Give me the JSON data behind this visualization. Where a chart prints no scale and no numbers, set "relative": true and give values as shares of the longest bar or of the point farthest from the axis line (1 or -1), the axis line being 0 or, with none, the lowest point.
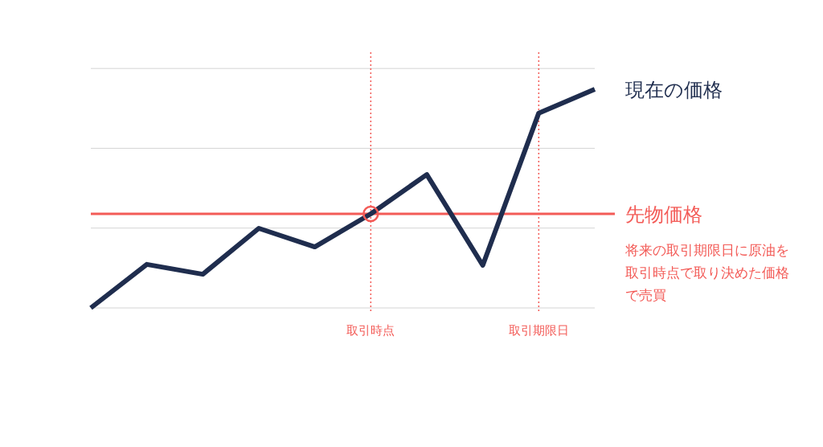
{
  "chart_data": {
    "type": "line",
    "relative": true,
    "categories": [
      null,
      null,
      null,
      null,
      null,
      "取引時点",
      null,
      null,
      "取引期限日",
      null
    ],
    "series": [
      {
        "name": "現在の価格",
        "color": "#1f2d4e",
        "values": [
          0,
          0.199,
          0.154,
          0.364,
          0.279,
          0.43,
          0.61,
          0.195,
          0.891,
          1
        ]
      }
    ],
    "ref_lines": [
      {
        "axis": "y",
        "value": 0,
        "color": "#d4d4d4",
        "line_style": "solid"
      },
      {
        "axis": "y",
        "value": 0.365,
        "color": "#d4d4d4",
        "line_style": "solid"
      },
      {
        "axis": "y",
        "value": 0.73,
        "color": "#d4d4d4",
        "line_style": "solid"
      },
      {
        "axis": "y",
        "value": 1.095,
        "color": "#d4d4d4",
        "line_style": "solid"
      },
      {
        "axis": "y",
        "value": 0.43,
        "label": "先物価格",
        "color": "#f35b57",
        "line_style": "solid"
      }
    ],
    "annotations": [
      "将来の取引期限日に原油を取引時点で取り決めた価格で売買"
    ]
  }
}
